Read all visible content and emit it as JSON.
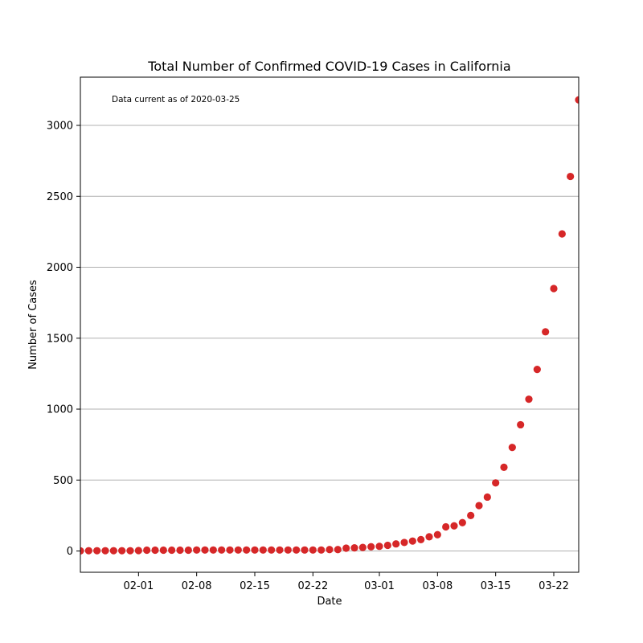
{
  "chart_data": {
    "type": "scatter",
    "title": "Total Number of Confirmed COVID-19 Cases in California",
    "xlabel": "Date",
    "ylabel": "Number of Cases",
    "annotation": "Data current as of 2020-03-25",
    "x_start": "2020-01-25",
    "x_end": "2020-03-25",
    "xlim": [
      "2020-01-25",
      "2020-03-25"
    ],
    "ylim": [
      -150,
      3340
    ],
    "grid": "y",
    "marker_color": "#d62728",
    "x_ticks": [
      {
        "date": "2020-02-01",
        "label": "02-01"
      },
      {
        "date": "2020-02-08",
        "label": "02-08"
      },
      {
        "date": "2020-02-15",
        "label": "02-15"
      },
      {
        "date": "2020-02-22",
        "label": "02-22"
      },
      {
        "date": "2020-03-01",
        "label": "03-01"
      },
      {
        "date": "2020-03-08",
        "label": "03-08"
      },
      {
        "date": "2020-03-15",
        "label": "03-15"
      },
      {
        "date": "2020-03-22",
        "label": "03-22"
      }
    ],
    "y_ticks": [
      0,
      500,
      1000,
      1500,
      2000,
      2500,
      3000
    ],
    "series": [
      {
        "x": [
          "2020-01-25",
          "2020-01-26",
          "2020-01-27",
          "2020-01-28",
          "2020-01-29",
          "2020-01-30",
          "2020-01-31",
          "2020-02-01",
          "2020-02-02",
          "2020-02-03",
          "2020-02-04",
          "2020-02-05",
          "2020-02-06",
          "2020-02-07",
          "2020-02-08",
          "2020-02-09",
          "2020-02-10",
          "2020-02-11",
          "2020-02-12",
          "2020-02-13",
          "2020-02-14",
          "2020-02-15",
          "2020-02-16",
          "2020-02-17",
          "2020-02-18",
          "2020-02-19",
          "2020-02-20",
          "2020-02-21",
          "2020-02-22",
          "2020-02-23",
          "2020-02-24",
          "2020-02-25",
          "2020-02-26",
          "2020-02-27",
          "2020-02-28",
          "2020-02-29",
          "2020-03-01",
          "2020-03-02",
          "2020-03-03",
          "2020-03-04",
          "2020-03-05",
          "2020-03-06",
          "2020-03-07",
          "2020-03-08",
          "2020-03-09",
          "2020-03-10",
          "2020-03-11",
          "2020-03-12",
          "2020-03-13",
          "2020-03-14",
          "2020-03-15",
          "2020-03-16",
          "2020-03-17",
          "2020-03-18",
          "2020-03-19",
          "2020-03-20",
          "2020-03-21",
          "2020-03-22",
          "2020-03-23",
          "2020-03-24",
          "2020-03-25"
        ],
        "values": [
          1,
          2,
          2,
          2,
          2,
          2,
          2,
          3,
          6,
          6,
          6,
          6,
          6,
          6,
          7,
          7,
          7,
          7,
          7,
          7,
          7,
          7,
          7,
          7,
          7,
          7,
          7,
          7,
          7,
          7,
          10,
          10,
          20,
          22,
          25,
          30,
          33,
          40,
          50,
          60,
          70,
          80,
          100,
          115,
          170,
          177,
          200,
          250,
          320,
          380,
          480,
          590,
          730,
          890,
          1070,
          1280,
          1545,
          1850,
          2235,
          2640,
          3180
        ]
      }
    ]
  }
}
